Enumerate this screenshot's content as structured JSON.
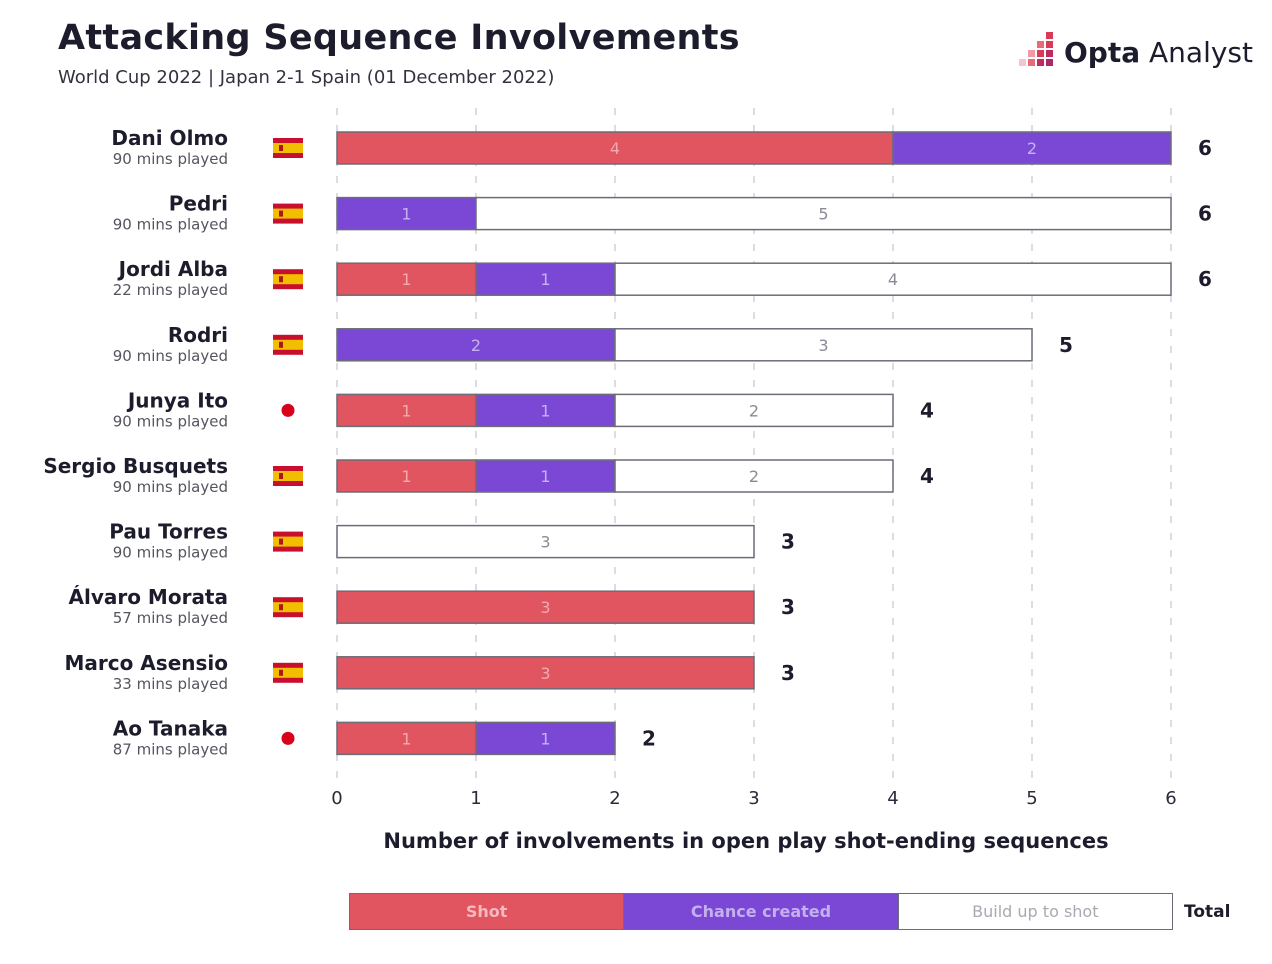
{
  "header": {
    "title": "Attacking Sequence Involvements",
    "subtitle": "World Cup 2022 | Japan 2-1 Spain (01 December 2022)"
  },
  "logo": {
    "brand_bold": "Opta",
    "brand_light": " Analyst",
    "icon": "opta-logo-icon"
  },
  "colors": {
    "shot": "#e0555f",
    "chance": "#7b48d6",
    "build": "#ffffff",
    "outline": "#6c6c78",
    "grid": "#c9c9d2"
  },
  "legend": {
    "shot": "Shot",
    "chance": "Chance created",
    "build": "Build up to shot",
    "total": "Total"
  },
  "chart_data": {
    "type": "bar",
    "orientation": "horizontal",
    "stacked": true,
    "xlabel": "Number of involvements in open play shot-ending sequences",
    "xlim": [
      0,
      6
    ],
    "xticks": [
      0,
      1,
      2,
      3,
      4,
      5,
      6
    ],
    "grid": "vertical dashed",
    "legend_position": "bottom",
    "categories": [
      {
        "name": "Dani Olmo",
        "mins": "90 mins played",
        "flag": "spain"
      },
      {
        "name": "Pedri",
        "mins": "90 mins played",
        "flag": "spain"
      },
      {
        "name": "Jordi Alba",
        "mins": "22 mins played",
        "flag": "spain"
      },
      {
        "name": "Rodri",
        "mins": "90 mins played",
        "flag": "spain"
      },
      {
        "name": "Junya Ito",
        "mins": "90 mins played",
        "flag": "japan"
      },
      {
        "name": "Sergio Busquets",
        "mins": "90 mins played",
        "flag": "spain"
      },
      {
        "name": "Pau Torres",
        "mins": "90 mins played",
        "flag": "spain"
      },
      {
        "name": "Álvaro Morata",
        "mins": "57 mins played",
        "flag": "spain"
      },
      {
        "name": "Marco Asensio",
        "mins": "33 mins played",
        "flag": "spain"
      },
      {
        "name": "Ao Tanaka",
        "mins": "87 mins played",
        "flag": "japan"
      }
    ],
    "series": [
      {
        "name": "Shot",
        "values": [
          4,
          0,
          1,
          0,
          1,
          1,
          0,
          3,
          3,
          1
        ]
      },
      {
        "name": "Chance created",
        "values": [
          2,
          1,
          1,
          2,
          1,
          1,
          0,
          0,
          0,
          1
        ]
      },
      {
        "name": "Build up to shot",
        "values": [
          0,
          5,
          4,
          3,
          2,
          2,
          3,
          0,
          0,
          0
        ]
      }
    ],
    "totals": [
      6,
      6,
      6,
      5,
      4,
      4,
      3,
      3,
      3,
      2
    ]
  }
}
